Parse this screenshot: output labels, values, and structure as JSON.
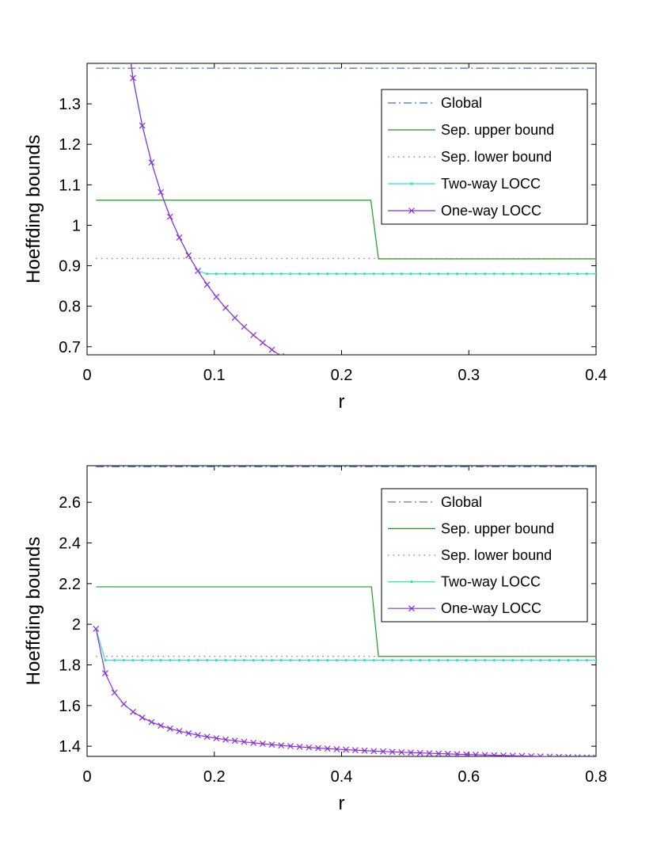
{
  "chart_data": [
    {
      "type": "line",
      "title": "",
      "xlabel": "r",
      "ylabel": "Hoeffding bounds",
      "xlim": [
        0,
        0.4
      ],
      "ylim": [
        0.68,
        1.4
      ],
      "xticks": [
        0,
        0.1,
        0.2,
        0.3,
        0.4
      ],
      "xtick_labels": [
        "0",
        "0.1",
        "0.2",
        "0.3",
        "0.4"
      ],
      "yticks": [
        0.7,
        0.8,
        0.9,
        1.0,
        1.1,
        1.2,
        1.3
      ],
      "ytick_labels": [
        "0.7",
        "0.8",
        "0.9",
        "1",
        "1.1",
        "1.2",
        "1.3"
      ],
      "grid": false,
      "legend_position": "top-right",
      "series": [
        {
          "name": "Global",
          "color": "#3a6fd8",
          "style": "dashdot",
          "marker": "none",
          "x": [
            0.007,
            0.4
          ],
          "y": [
            1.388,
            1.388
          ]
        },
        {
          "name": "Sep. upper bound",
          "color": "#1a9e1a",
          "style": "solid",
          "marker": "none",
          "x": [
            0.007,
            0.223,
            0.229,
            0.4
          ],
          "y": [
            1.062,
            1.062,
            0.917,
            0.917
          ]
        },
        {
          "name": "Sep. lower bound",
          "color": "#e0507a",
          "style": "dotted",
          "marker": "none",
          "x": [
            0.007,
            0.4
          ],
          "y": [
            0.918,
            0.918
          ]
        },
        {
          "name": "Two-way LOCC",
          "color": "#2ee6b8",
          "style": "solid",
          "marker": "dot",
          "floor": 0.88,
          "decay": {
            "a": 0.0254,
            "b": 0.2543,
            "p": 0.5
          }
        },
        {
          "name": "One-way LOCC",
          "color": "#8a2be2",
          "style": "solid",
          "marker": "x",
          "x_start": 0.007,
          "x_end": 0.4,
          "points": 55,
          "decay": {
            "a": 0.0254,
            "b": 0.2543,
            "p": 0.5
          }
        }
      ]
    },
    {
      "type": "line",
      "title": "",
      "xlabel": "r",
      "ylabel": "Hoeffding bounds",
      "xlim": [
        0,
        0.8
      ],
      "ylim": [
        1.35,
        2.78
      ],
      "xticks": [
        0,
        0.2,
        0.4,
        0.6,
        0.8
      ],
      "xtick_labels": [
        "0",
        "0.2",
        "0.4",
        "0.6",
        "0.8"
      ],
      "yticks": [
        1.4,
        1.6,
        1.8,
        2.0,
        2.2,
        2.4,
        2.6
      ],
      "ytick_labels": [
        "1.4",
        "1.6",
        "1.8",
        "2",
        "2.2",
        "2.4",
        "2.6"
      ],
      "grid": false,
      "legend_position": "top-right",
      "series": [
        {
          "name": "Global",
          "color": "#3a6fd8",
          "style": "dashdot",
          "marker": "none",
          "x": [
            0.014,
            0.8
          ],
          "y": [
            2.775,
            2.775
          ]
        },
        {
          "name": "Sep. upper bound",
          "color": "#1a9e1a",
          "style": "solid",
          "marker": "none",
          "x": [
            0.014,
            0.447,
            0.458,
            0.8
          ],
          "y": [
            2.184,
            2.184,
            1.842,
            1.842
          ]
        },
        {
          "name": "Sep. lower bound",
          "color": "#e0507a",
          "style": "dotted",
          "marker": "none",
          "x": [
            0.014,
            0.8
          ],
          "y": [
            1.842,
            1.842
          ]
        },
        {
          "name": "Two-way LOCC",
          "color": "#2ee6b8",
          "style": "solid",
          "marker": "dot",
          "floor": 1.823,
          "decay": {
            "a": 1.2475,
            "b": 0.0864,
            "p": 0.5
          }
        },
        {
          "name": "One-way LOCC",
          "color": "#8a2be2",
          "style": "solid",
          "marker": "x",
          "x_start": 0.014,
          "x_end": 0.8,
          "points": 55,
          "decay": {
            "a": 1.2475,
            "b": 0.0864,
            "p": 0.5
          }
        }
      ]
    }
  ]
}
